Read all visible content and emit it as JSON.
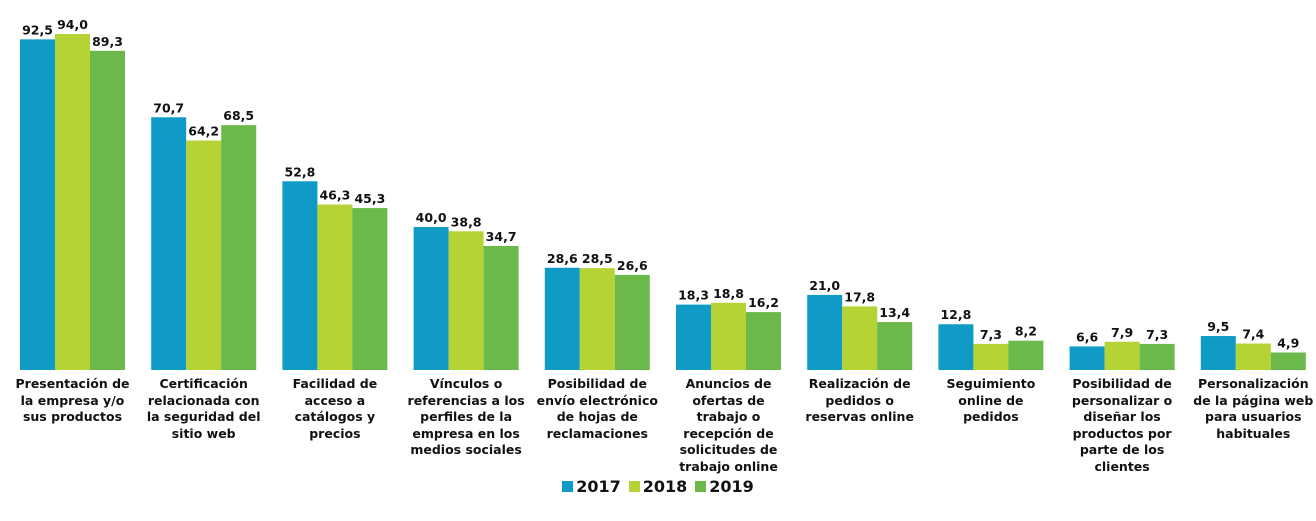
{
  "chart_data": {
    "type": "bar",
    "categories": [
      "Presentación de\nla empresa  y/o\nsus productos",
      "Certificación\nrelacionada con\nla seguridad del\nsitio web",
      "Facilidad de\nacceso a\ncatálogos y\nprecios",
      "Vínculos o\nreferencias a los\nperfiles de la\nempresa en los\nmedios sociales",
      "Posibilidad de\nenvío electrónico\nde hojas de\nreclamaciones",
      "Anuncios de\nofertas de\ntrabajo o\nrecepción de\nsolicitudes de\ntrabajo online",
      "Realización de\npedidos o\nreservas online",
      "Seguimiento\nonline de\npedidos",
      "Posibilidad de\npersonalizar o\ndiseñar los\nproductos por\nparte de los\nclientes",
      "Personalización\nde la página web\npara usuarios\nhabituales"
    ],
    "series": [
      {
        "name": "2017",
        "color": "#0f9bc6",
        "values": [
          92.5,
          70.7,
          52.8,
          40.0,
          28.6,
          18.3,
          21.0,
          12.8,
          6.6,
          9.5
        ],
        "value_labels": [
          "92,5",
          "70,7",
          "52,8",
          "40,0",
          "28,6",
          "18,3",
          "21,0",
          "12,8",
          "6,6",
          "9,5"
        ]
      },
      {
        "name": "2018",
        "color": "#b5d334",
        "values": [
          94.0,
          64.2,
          46.3,
          38.8,
          28.5,
          18.8,
          17.8,
          7.3,
          7.9,
          7.4
        ],
        "value_labels": [
          "94,0",
          "64,2",
          "46,3",
          "38,8",
          "28,5",
          "18,8",
          "17,8",
          "7,3",
          "7,9",
          "7,4"
        ]
      },
      {
        "name": "2019",
        "color": "#6bb94b",
        "values": [
          89.3,
          68.5,
          45.3,
          34.7,
          26.6,
          16.2,
          13.4,
          8.2,
          7.3,
          4.9
        ],
        "value_labels": [
          "89,3",
          "68,5",
          "45,3",
          "34,7",
          "26,6",
          "16,2",
          "13,4",
          "8,2",
          "7,3",
          "4,9"
        ]
      }
    ],
    "legend": "bottom"
  }
}
